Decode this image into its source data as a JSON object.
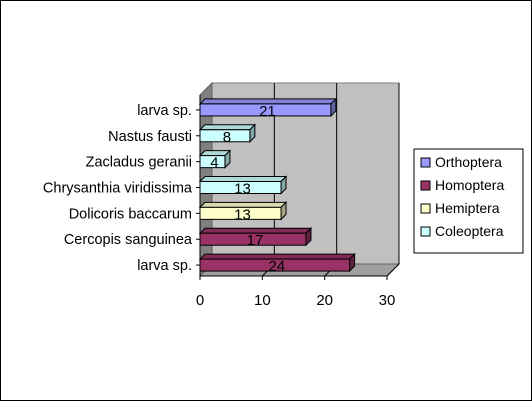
{
  "chart_data": {
    "type": "bar",
    "orientation": "horizontal",
    "three_d": true,
    "categories": [
      "larva sp.",
      "Nastus fausti",
      "Zacladus geranii",
      "Chrysanthia viridissima",
      "Dolicoris baccarum",
      "Cercopis sanguinea",
      "larva sp."
    ],
    "values": [
      21,
      8,
      4,
      13,
      13,
      17,
      24
    ],
    "groups": [
      "Orthoptera",
      "Coleoptera",
      "Coleoptera",
      "Coleoptera",
      "Hemiptera",
      "Homoptera",
      "Homoptera"
    ],
    "series": [
      {
        "name": "Orthoptera",
        "color": "#9999ff"
      },
      {
        "name": "Homoptera",
        "color": "#993366"
      },
      {
        "name": "Hemiptera",
        "color": "#ffffcc"
      },
      {
        "name": "Coleoptera",
        "color": "#ccffff"
      }
    ],
    "xlim": [
      0,
      30
    ],
    "xticks": [
      "0",
      "10",
      "20",
      "30"
    ],
    "grid": "vertical",
    "legend": "right",
    "data_labels": true,
    "title": "",
    "xlabel": "",
    "ylabel": ""
  }
}
